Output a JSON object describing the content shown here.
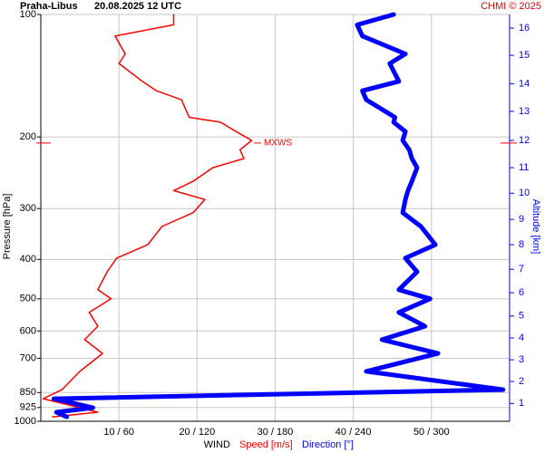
{
  "chart_data": {
    "type": "line",
    "title": "Praha-Libus",
    "subtitle": "20.08.2025 12 UTC",
    "credit": "CHMI © 2025",
    "ylabel": "Pressure [hPa]",
    "y2label": "Altitude [km]",
    "xlabel": "WIND",
    "y": [
      100,
      106,
      113,
      125,
      132,
      146,
      154,
      162,
      179,
      184,
      194,
      204,
      215,
      226,
      238,
      257,
      271,
      285,
      307,
      332,
      368,
      397,
      429,
      475,
      500,
      540,
      584,
      630,
      681,
      754,
      836,
      880,
      926,
      950,
      975
    ],
    "ylim": [
      100,
      1000
    ],
    "ylog": true,
    "yticks": [
      100,
      200,
      300,
      400,
      500,
      600,
      700,
      850,
      925,
      1000
    ],
    "xlim": [
      0,
      60
    ],
    "x2lim": [
      0,
      360
    ],
    "xticks": [
      {
        "value": 10,
        "label": "10 / 60"
      },
      {
        "value": 20,
        "label": "20 / 120"
      },
      {
        "value": 30,
        "label": "30 / 180"
      },
      {
        "value": 40,
        "label": "40 / 240"
      },
      {
        "value": 50,
        "label": "50 / 300"
      }
    ],
    "y2ticks": [
      1,
      2,
      3,
      4,
      5,
      6,
      7,
      8,
      9,
      10,
      11,
      12,
      13,
      14,
      15,
      16
    ],
    "y2tick_pressures": [
      904,
      798,
      706,
      624,
      551,
      483,
      423,
      368,
      319,
      275,
      238,
      204,
      173,
      148,
      126,
      108
    ],
    "grid": true,
    "series": [
      {
        "name": "Speed [m/s]",
        "color": "#ff0000",
        "axis": "x",
        "values": [
          17,
          17,
          9.5,
          10.8,
          10,
          13,
          14.8,
          18,
          19,
          23,
          25,
          27,
          25.5,
          26,
          22,
          19.5,
          17,
          21,
          19.5,
          15.5,
          13.7,
          9.7,
          8.5,
          7.3,
          9,
          6.2,
          7.3,
          5.6,
          7.9,
          5,
          2.7,
          0.3,
          5,
          7.3,
          1.5
        ]
      },
      {
        "name": "Direction [°]",
        "color": "#0000ff",
        "axis": "x2",
        "values": [
          271,
          243,
          247,
          280,
          268,
          275,
          247,
          250,
          272,
          271,
          280,
          278,
          283,
          285,
          289,
          285,
          282,
          280,
          278,
          292,
          303,
          280,
          289,
          275,
          299,
          275,
          295,
          262,
          305,
          250,
          355,
          10,
          40,
          12,
          20
        ]
      }
    ],
    "annotation": {
      "text": "MXWS",
      "y": 207
    }
  }
}
